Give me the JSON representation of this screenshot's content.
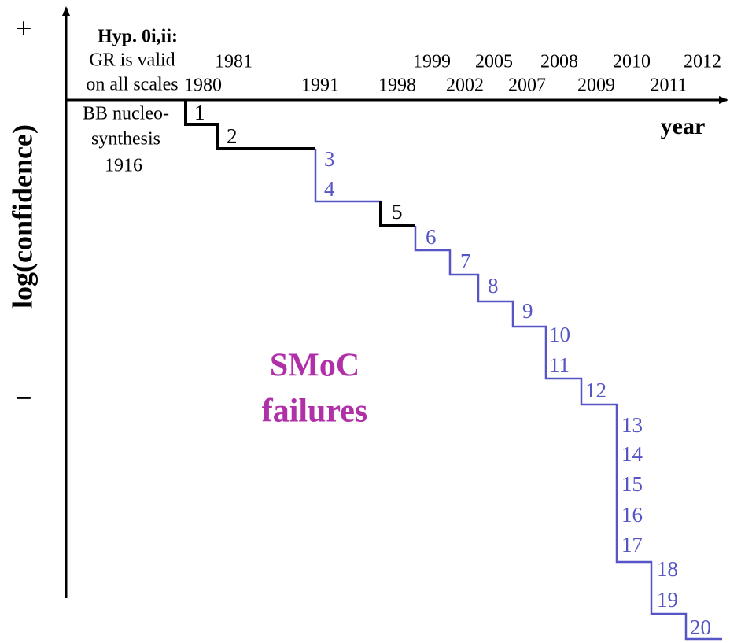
{
  "axis": {
    "y_label": "log(confidence)",
    "x_label": "year",
    "plus": "+",
    "minus": "−"
  },
  "annotations": {
    "hypothesis_title": "Hyp. 0i,ii:",
    "hypothesis_lines": [
      "GR is valid",
      "on all scales"
    ],
    "bb_lines": [
      "BB nucleo-",
      "synthesis",
      "1916"
    ],
    "smoc": [
      "SMoC",
      "failures"
    ]
  },
  "years": [
    "1981",
    "1999",
    "2005",
    "2008",
    "2010",
    "2012",
    "1980",
    "1991",
    "1998",
    "2002",
    "2007",
    "2009",
    "2011"
  ],
  "failures": [
    "1",
    "2",
    "3",
    "4",
    "5",
    "6",
    "7",
    "8",
    "9",
    "10",
    "11",
    "12",
    "13",
    "14",
    "15",
    "16",
    "17",
    "18",
    "19",
    "20"
  ]
}
